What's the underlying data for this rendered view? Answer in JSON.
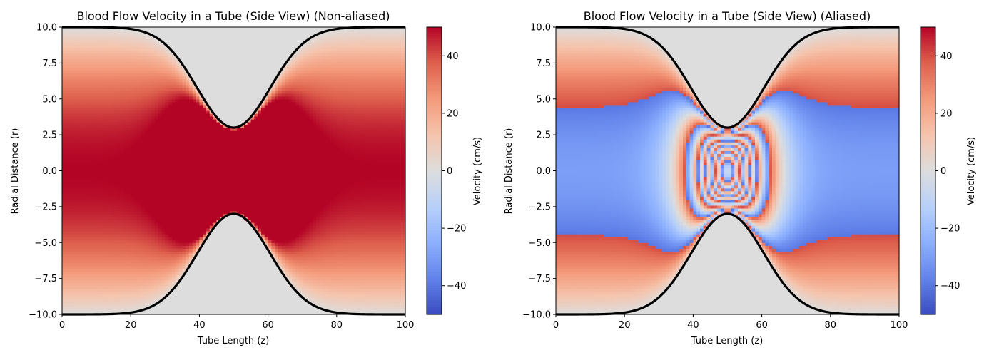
{
  "chart_data": [
    {
      "type": "heatmap",
      "title": "Blood Flow Velocity in a Tube (Side View) (Non-aliased)",
      "xlabel": "Tube Length (z)",
      "ylabel": "Radial Distance (r)",
      "xlim": [
        0,
        100
      ],
      "ylim": [
        -10,
        10
      ],
      "xticks": [
        "0",
        "20",
        "40",
        "60",
        "80",
        "100"
      ],
      "yticks": [
        "10.0",
        "7.5",
        "5.0",
        "2.5",
        "0.0",
        "−2.5",
        "−5.0",
        "−7.5",
        "−10.0"
      ],
      "colorbar": {
        "label": "Velocity (cm/s)",
        "range": [
          -50,
          50
        ],
        "ticks": [
          "40",
          "20",
          "0",
          "−20",
          "−40"
        ],
        "colormap": "coolwarm"
      },
      "model": {
        "centerline_velocity": 50,
        "tube_radius": 10,
        "stenosis_center_z": 50,
        "stenosis_min_radius": 3,
        "stenosis_width": 15,
        "aliasing_limit": null,
        "outside_value": 0
      },
      "wall_color": "#000000"
    },
    {
      "type": "heatmap",
      "title": "Blood Flow Velocity in a Tube (Side View) (Aliased)",
      "xlabel": "Tube Length (z)",
      "ylabel": "Radial Distance (r)",
      "xlim": [
        0,
        100
      ],
      "ylim": [
        -10,
        10
      ],
      "xticks": [
        "0",
        "20",
        "40",
        "60",
        "80",
        "100"
      ],
      "yticks": [
        "10.0",
        "7.5",
        "5.0",
        "2.5",
        "0.0",
        "−2.5",
        "−5.0",
        "−7.5",
        "−10.0"
      ],
      "colorbar": {
        "label": "Velocity (cm/s)",
        "range": [
          -50,
          50
        ],
        "ticks": [
          "40",
          "20",
          "0",
          "−20",
          "−40"
        ],
        "colormap": "coolwarm"
      },
      "model": {
        "centerline_velocity": 50,
        "tube_radius": 10,
        "stenosis_center_z": 50,
        "stenosis_min_radius": 3,
        "stenosis_width": 15,
        "aliasing_limit": 40,
        "outside_value": 0
      },
      "wall_color": "#000000"
    }
  ]
}
